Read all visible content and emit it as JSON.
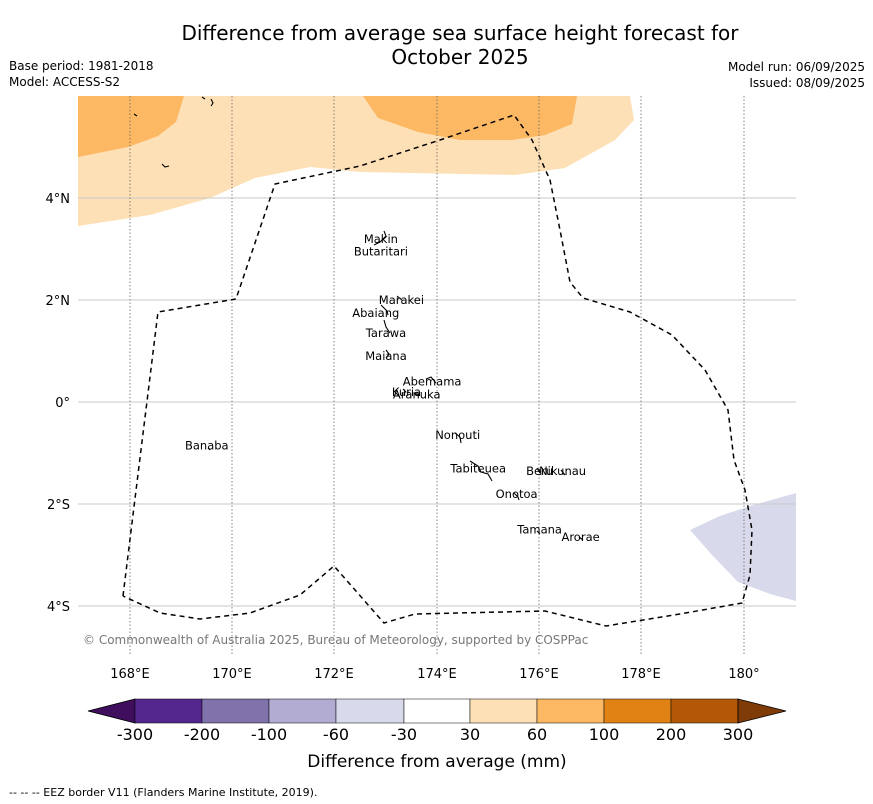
{
  "title_line1": "Difference from average sea surface height forecast for",
  "title_line2": "October 2025",
  "base_period": "Base period: 1981-2018",
  "model": "Model: ACCESS-S2",
  "model_run": "Model run: 06/09/2025",
  "issued": "Issued: 08/09/2025",
  "map": {
    "lon_ticks": [
      "168°E",
      "170°E",
      "172°E",
      "174°E",
      "176°E",
      "178°E",
      "180°"
    ],
    "lat_ticks": [
      "4°N",
      "2°N",
      "0°",
      "2°S",
      "4°S"
    ],
    "places": [
      {
        "name": "Makin",
        "lon": 172.9,
        "lat": 3.2
      },
      {
        "name": "Butaritari",
        "lon": 172.9,
        "lat": 2.95
      },
      {
        "name": "Marakei",
        "lon": 173.3,
        "lat": 2.0
      },
      {
        "name": "Abaiang",
        "lon": 172.8,
        "lat": 1.75
      },
      {
        "name": "Tarawa",
        "lon": 173.0,
        "lat": 1.35
      },
      {
        "name": "Maiana",
        "lon": 173.0,
        "lat": 0.9
      },
      {
        "name": "Abemama",
        "lon": 173.9,
        "lat": 0.4
      },
      {
        "name": "Kuria",
        "lon": 173.4,
        "lat": 0.2
      },
      {
        "name": "Aranuka",
        "lon": 173.6,
        "lat": 0.15
      },
      {
        "name": "Nonouti",
        "lon": 174.4,
        "lat": -0.65
      },
      {
        "name": "Banaba",
        "lon": 169.5,
        "lat": -0.85
      },
      {
        "name": "Beru",
        "lon": 176.0,
        "lat": -1.35
      },
      {
        "name": "Nikunau",
        "lon": 176.45,
        "lat": -1.35
      },
      {
        "name": "Tabiteuea",
        "lon": 174.8,
        "lat": -1.3
      },
      {
        "name": "Onotoa",
        "lon": 175.55,
        "lat": -1.8
      },
      {
        "name": "Tamana",
        "lon": 176.0,
        "lat": -2.5
      },
      {
        "name": "Arorae",
        "lon": 176.8,
        "lat": -2.65
      }
    ],
    "copyright": "© Commonwealth of Australia 2025, Bureau of Meteorology, supported by COSPPac"
  },
  "colorbar": {
    "label": "Difference from average (mm)",
    "ticks": [
      "-300",
      "-200",
      "-100",
      "-60",
      "-30",
      "30",
      "60",
      "100",
      "200",
      "300"
    ],
    "colors": [
      "#3f0f5e",
      "#54278f",
      "#8073ac",
      "#b2abd2",
      "#d8daeb",
      "#ffffff",
      "#fee0b6",
      "#fdb863",
      "#e08214",
      "#b35806",
      "#7f3b08"
    ]
  },
  "footer": "-- -- -- EEZ border V11 (Flanders Marine Institute, 2019)."
}
